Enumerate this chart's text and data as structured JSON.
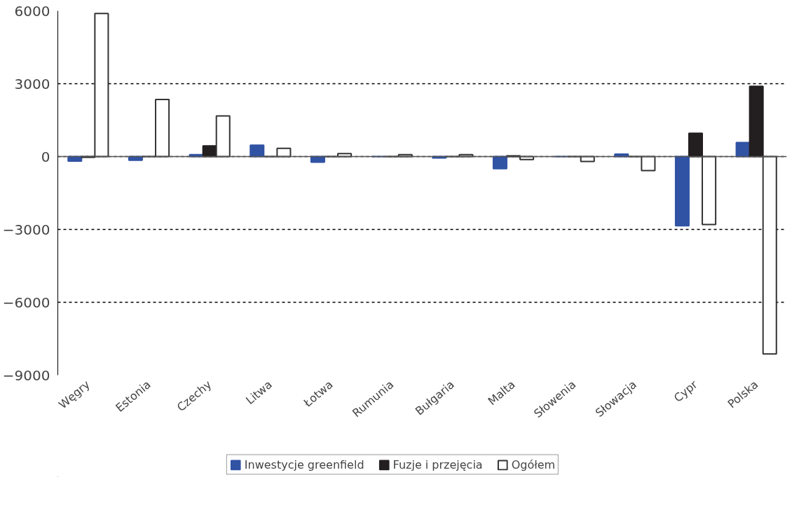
{
  "chart_data": {
    "type": "bar",
    "categories": [
      "Węgry",
      "Estonia",
      "Czechy",
      "Litwa",
      "Łotwa",
      "Rumunia",
      "Bułgaria",
      "Malta",
      "Słowenia",
      "Słowacja",
      "Cypr",
      "Polska"
    ],
    "series": [
      {
        "name": "Inwestycje greenfield",
        "color": "#3153a4",
        "values": [
          -190,
          -150,
          80,
          470,
          -230,
          0,
          -60,
          -500,
          0,
          100,
          -2850,
          580
        ]
      },
      {
        "name": "Fuzje i przejęcia",
        "color": "#231f20",
        "values": [
          -30,
          0,
          440,
          0,
          0,
          0,
          0,
          30,
          0,
          0,
          960,
          2890
        ]
      },
      {
        "name": "Ogółem",
        "color": "#ffffff",
        "values": [
          5890,
          2350,
          1670,
          340,
          120,
          80,
          80,
          -120,
          -200,
          -580,
          -2800,
          -8130
        ]
      }
    ],
    "ylim": [
      -9000,
      6000
    ],
    "yticks": [
      -9000,
      -6000,
      -3000,
      0,
      3000,
      6000
    ],
    "grid": "y",
    "legend": "bottom"
  }
}
